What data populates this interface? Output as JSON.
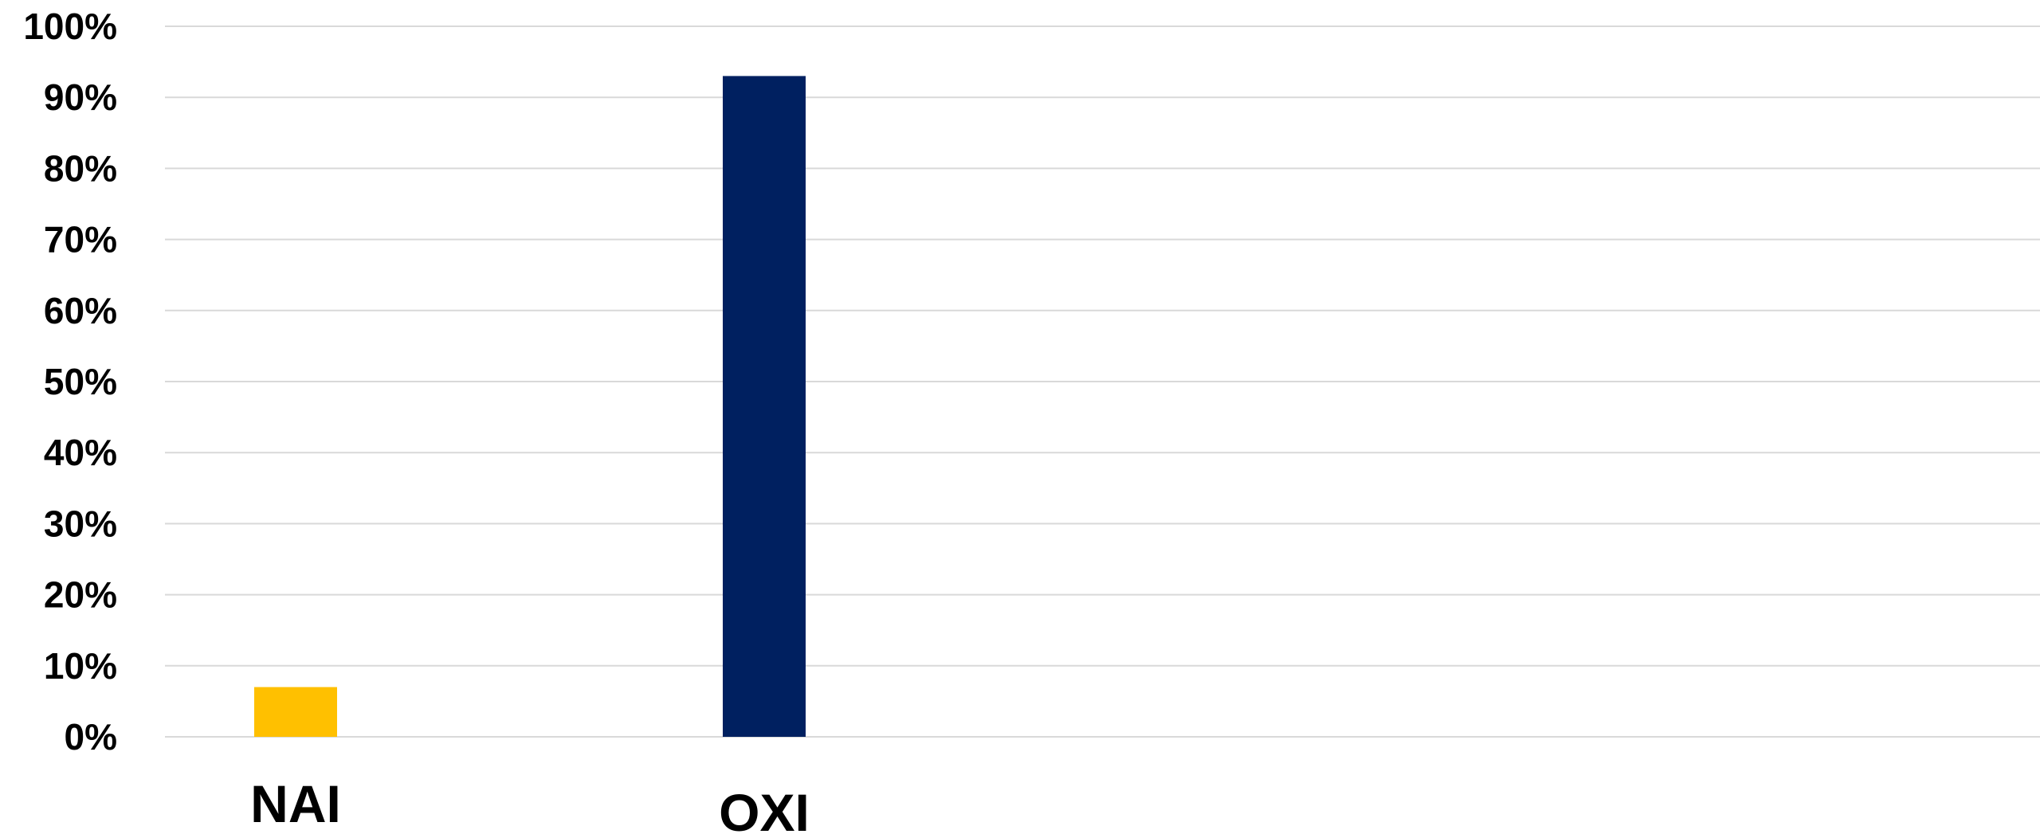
{
  "chart_data": {
    "type": "bar",
    "title": "",
    "xlabel": "",
    "ylabel": "",
    "categories": [
      "NAI",
      "OXI"
    ],
    "values": [
      0.07,
      0.93
    ],
    "bar_colors": [
      "#FFC000",
      "#002060"
    ],
    "ylim": [
      0,
      1
    ],
    "y_ticks": [
      0,
      0.1,
      0.2,
      0.3,
      0.4,
      0.5,
      0.6,
      0.7,
      0.8,
      0.9,
      1.0
    ],
    "y_tick_labels": [
      "0%",
      "10%",
      "20%",
      "30%",
      "40%",
      "50%",
      "60%",
      "70%",
      "80%",
      "90%",
      "100%"
    ],
    "grid": true,
    "legend": "none",
    "gridline_color": "#d9d9d9"
  }
}
